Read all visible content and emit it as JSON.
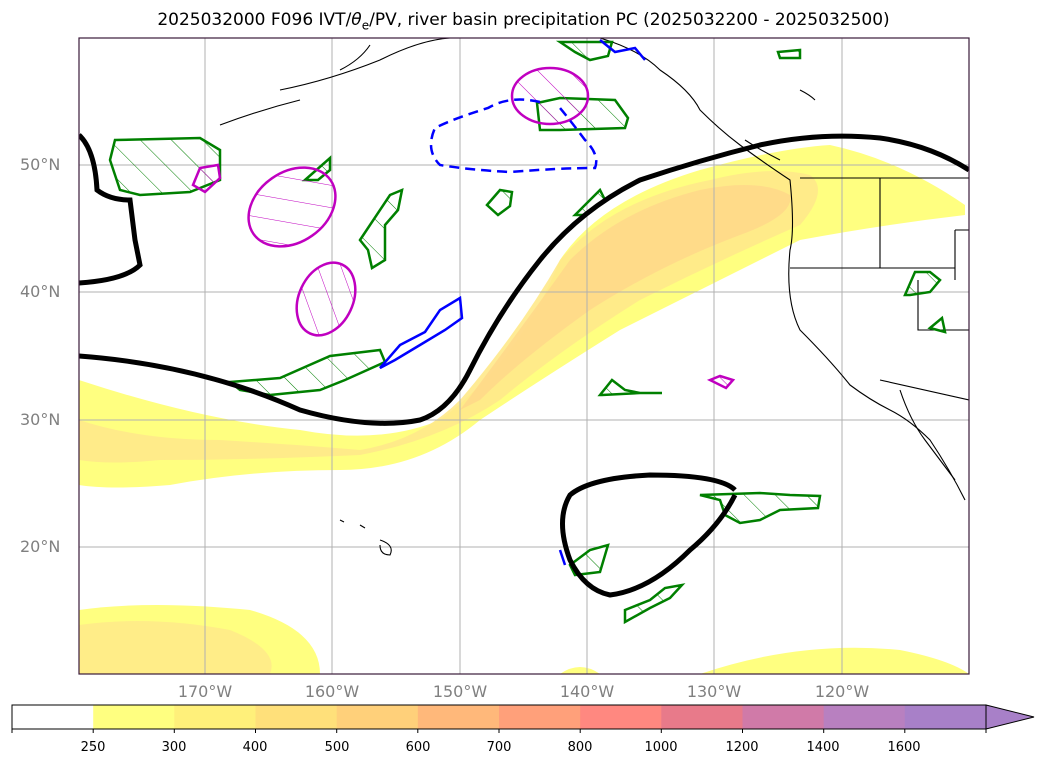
{
  "title": {
    "prefix": "2025032000 F096 IVT/",
    "theta": "θ",
    "sub": "e",
    "suffix": "/PV, river basin precipitation PC (2025032200 - 2025032500)"
  },
  "axes": {
    "lat_labels": [
      "50°N",
      "40°N",
      "30°N",
      "20°N"
    ],
    "lon_labels": [
      "170°W",
      "160°W",
      "150°W",
      "140°W",
      "130°W",
      "120°W"
    ]
  },
  "colorbar": {
    "ticks": [
      "250",
      "300",
      "400",
      "500",
      "600",
      "700",
      "800",
      "1000",
      "1200",
      "1400",
      "1600"
    ],
    "colors": [
      "#ffffff",
      "#ffff80",
      "#fff07a",
      "#ffe07a",
      "#ffd07a",
      "#ffb87a",
      "#ffa07a",
      "#ff8880",
      "#e87a8a",
      "#d07aa8",
      "#b880c0",
      "#a880c8"
    ]
  },
  "legend_colors": {
    "contour_black": "#000000",
    "contour_green": "#008000",
    "contour_blue": "#0000ff",
    "contour_magenta": "#c000c0"
  }
}
